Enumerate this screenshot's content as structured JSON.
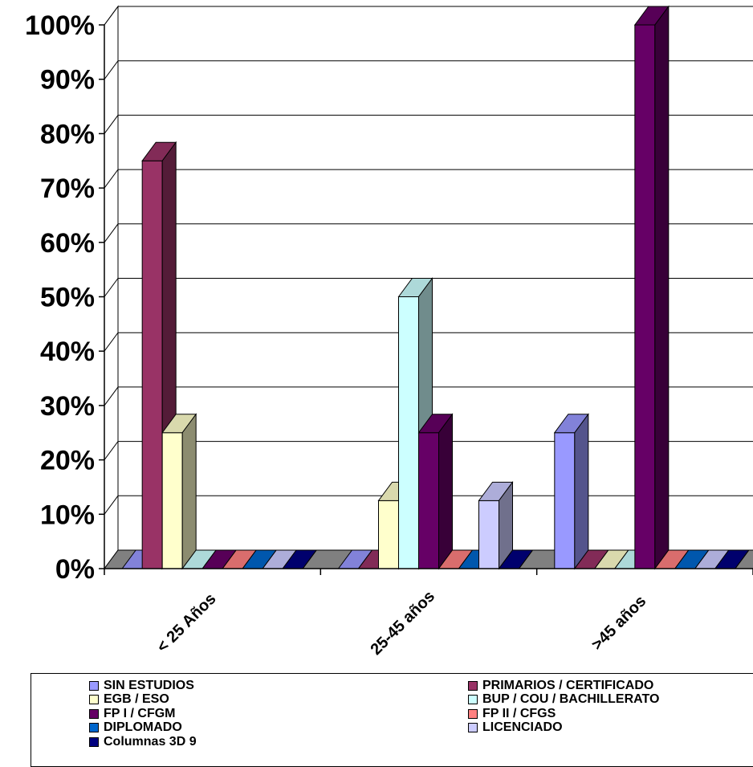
{
  "chart_data": {
    "type": "bar",
    "style": "3d-clustered-column",
    "title": "",
    "xlabel": "",
    "ylabel": "",
    "ylim": [
      0,
      100
    ],
    "y_tick_labels": [
      "0%",
      "10%",
      "20%",
      "30%",
      "40%",
      "50%",
      "60%",
      "70%",
      "80%",
      "90%",
      "100%"
    ],
    "gridlines": true,
    "legend_position": "bottom",
    "categories": [
      "< 25 Años",
      "25-45 años",
      ">45 años"
    ],
    "series": [
      {
        "name": "SIN ESTUDIOS",
        "color": "#9999ff",
        "values": [
          0,
          0,
          25
        ]
      },
      {
        "name": "PRIMARIOS / CERTIFICADO",
        "color": "#993366",
        "values": [
          75,
          0,
          0
        ]
      },
      {
        "name": "EGB / ESO",
        "color": "#ffffcc",
        "values": [
          25,
          12.5,
          0
        ]
      },
      {
        "name": "BUP / COU / BACHILLERATO",
        "color": "#ccffff",
        "values": [
          0,
          50,
          0
        ]
      },
      {
        "name": "FP I / CFGM",
        "color": "#660066",
        "values": [
          0,
          25,
          100
        ]
      },
      {
        "name": "FP II / CFGS",
        "color": "#ff8080",
        "values": [
          0,
          0,
          0
        ]
      },
      {
        "name": "DIPLOMADO",
        "color": "#0066cc",
        "values": [
          0,
          0,
          0
        ]
      },
      {
        "name": "LICENCIADO",
        "color": "#ccccff",
        "values": [
          0,
          12.5,
          0
        ]
      },
      {
        "name": "Columnas 3D 9",
        "color": "#000080",
        "values": [
          0,
          0,
          0
        ]
      }
    ]
  }
}
